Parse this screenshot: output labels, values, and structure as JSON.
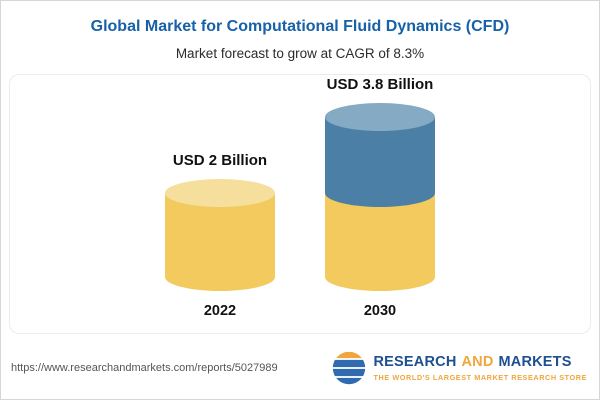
{
  "header": {
    "title": "Global Market for Computational Fluid Dynamics (CFD)",
    "subtitle": "Market forecast to grow at CAGR of 8.3%"
  },
  "chart_data": {
    "type": "bar",
    "variant": "stacked-cylinder",
    "title": "Global Market for Computational Fluid Dynamics (CFD)",
    "subtitle": "Market forecast to grow at CAGR of 8.3%",
    "cagr": "8.3%",
    "unit": "USD Billion",
    "categories": [
      "2022",
      "2030"
    ],
    "values": [
      2,
      3.8
    ],
    "value_labels": [
      "USD 2 Billion",
      "USD 3.8 Billion"
    ],
    "series": [
      {
        "name": "base-market",
        "values": [
          2,
          2
        ],
        "color": "#F2CA5E"
      },
      {
        "name": "forecast-growth",
        "values": [
          0,
          1.8
        ],
        "color": "#4C7FA6"
      }
    ],
    "legend": "none",
    "axes": "none",
    "colors": {
      "base_segment": "#F2CA5E",
      "base_segment_top": "#F6DF9C",
      "growth_segment": "#4C7FA6",
      "growth_segment_top": "#85AAC4"
    }
  },
  "footer": {
    "url": "https://www.researchandmarkets.com/reports/5027989",
    "logo": {
      "name_part1": "RESEARCH",
      "name_part2": "AND",
      "name_part3": "MARKETS",
      "tagline": "THE WORLD'S LARGEST MARKET RESEARCH STORE"
    }
  },
  "colors": {
    "title": "#1761A8",
    "accent_gold": "#F0A63C",
    "logo_blue": "#1D4F91"
  }
}
